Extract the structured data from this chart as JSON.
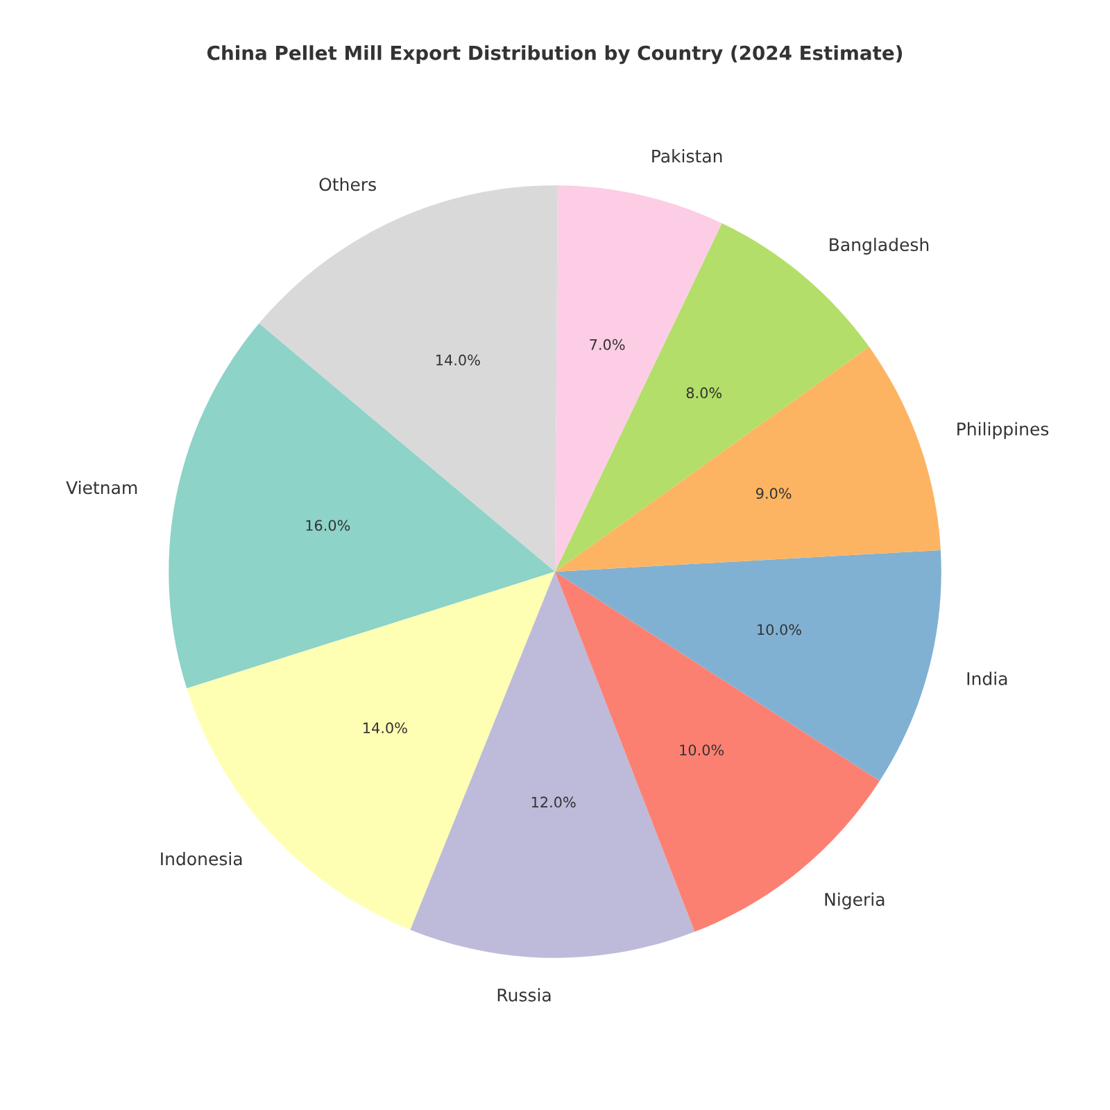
{
  "chart_data": {
    "type": "pie",
    "title": "China Pellet Mill Export Distribution by Country (2024 Estimate)",
    "categories": [
      "Vietnam",
      "Indonesia",
      "Russia",
      "Nigeria",
      "India",
      "Philippines",
      "Bangladesh",
      "Pakistan",
      "Others"
    ],
    "values": [
      16,
      14,
      12,
      10,
      10,
      9,
      8,
      7,
      14
    ],
    "value_labels": [
      "16.0%",
      "14.0%",
      "12.0%",
      "10.0%",
      "10.0%",
      "9.0%",
      "8.0%",
      "7.0%",
      "14.0%"
    ],
    "colors": [
      "#8dd3c7",
      "#ffffb3",
      "#bebada",
      "#fb8072",
      "#80b1d3",
      "#fdb462",
      "#b3de69",
      "#fccde5",
      "#d9d9d9"
    ]
  }
}
